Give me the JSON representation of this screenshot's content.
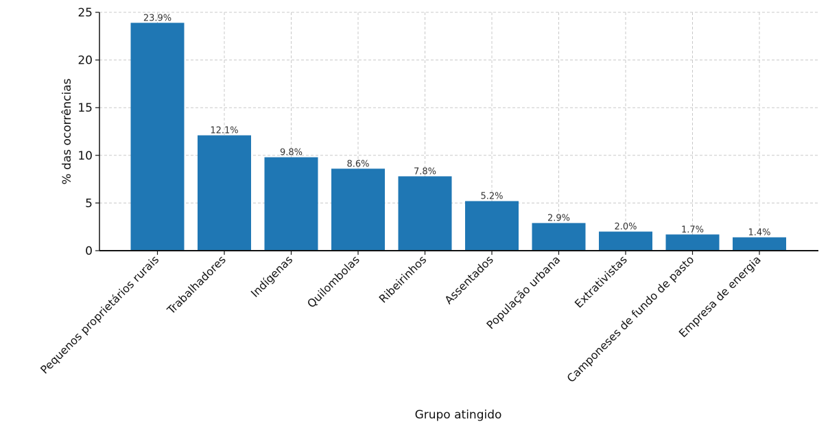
{
  "chart_data": {
    "type": "bar",
    "title": "",
    "xlabel": "Grupo atingido",
    "ylabel": "% das ocorrências",
    "categories": [
      "Pequenos proprietários rurais",
      "Trabalhadores",
      "Indígenas",
      "Quilombolas",
      "Ribeirinhos",
      "Assentados",
      "População urbana",
      "Extrativistas",
      "Camponeses de fundo de pasto",
      "Empresa de energia"
    ],
    "values": [
      23.9,
      12.1,
      9.8,
      8.6,
      7.8,
      5.2,
      2.9,
      2.0,
      1.7,
      1.4
    ],
    "data_labels": [
      "23.9%",
      "12.1%",
      "9.8%",
      "8.6%",
      "7.8%",
      "5.2%",
      "2.9%",
      "2.0%",
      "1.7%",
      "1.4%"
    ],
    "ylim": [
      0,
      25
    ],
    "yticks": [
      0,
      5,
      10,
      15,
      20,
      25
    ],
    "grid": true,
    "bar_color": "#1f77b4"
  }
}
